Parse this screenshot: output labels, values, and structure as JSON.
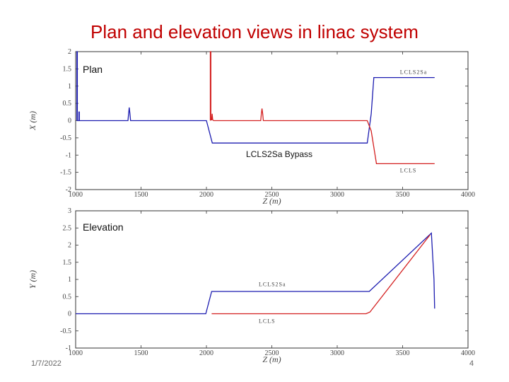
{
  "slide": {
    "title": "Plan and elevation views in linac system",
    "date": "1/7/2022",
    "page": "4"
  },
  "chart_data": [
    {
      "type": "line",
      "panel": "plan",
      "callout": "Plan",
      "annotation": "LCLS2Sa Bypass",
      "xlabel": "Z (m)",
      "ylabel": "X (m)",
      "xlim": [
        1000,
        4000
      ],
      "ylim": [
        -2,
        2
      ],
      "xticks": [
        1000,
        1500,
        2000,
        2500,
        3000,
        3500,
        4000
      ],
      "yticks": [
        -2,
        -1.5,
        -1,
        -0.5,
        0,
        0.5,
        1,
        1.5,
        2
      ],
      "yticklabels": [
        "-2",
        "-1.5",
        "-1",
        "-0.5",
        "0",
        "0.5",
        "1",
        "1.5",
        "2"
      ],
      "series_colors": {
        "lcls2sa": "#1c1cb0",
        "lcls": "#d42020"
      },
      "series": [
        {
          "name": "LCLS2Sa",
          "x": [
            1010,
            1010,
            1013,
            1013,
            1025,
            1025,
            1028,
            1028,
            1040,
            1400,
            1405,
            1410,
            1415,
            1420,
            2000,
            2045,
            3230,
            3260,
            3280,
            3745
          ],
          "y": [
            0,
            2,
            2,
            0,
            0,
            0.25,
            0.25,
            0,
            0,
            0,
            0.2,
            0.38,
            0.2,
            0,
            0,
            -0.65,
            -0.65,
            0.2,
            1.25,
            1.25
          ]
        },
        {
          "name": "LCLS",
          "x": [
            2030,
            2030,
            2034,
            2034,
            2040,
            2044,
            2048,
            2055,
            2415,
            2420,
            2425,
            2430,
            2435,
            3230,
            3260,
            3300,
            3745
          ],
          "y": [
            0,
            2,
            2,
            0.02,
            0.02,
            0.2,
            0.02,
            0,
            0,
            0.2,
            0.35,
            0.2,
            0,
            0,
            -0.3,
            -1.25,
            -1.25
          ]
        }
      ],
      "labels": [
        "LCLS2Sa",
        "LCLS"
      ]
    },
    {
      "type": "line",
      "panel": "elevation",
      "callout": "Elevation",
      "xlabel": "Z (m)",
      "ylabel": "Y (m)",
      "xlim": [
        1000,
        4000
      ],
      "ylim": [
        -1,
        3
      ],
      "xticks": [
        1000,
        1500,
        2000,
        2500,
        3000,
        3500,
        4000
      ],
      "yticks": [
        -1,
        -0.5,
        0,
        0.5,
        1,
        1.5,
        2,
        2.5,
        3
      ],
      "yticklabels": [
        "-1",
        "-0.5",
        "0",
        "0.5",
        "1",
        "1.5",
        "2",
        "2.5",
        "3"
      ],
      "series_colors": {
        "lcls2sa": "#1c1cb0",
        "lcls": "#d42020"
      },
      "series": [
        {
          "name": "LCLS2Sa",
          "x": [
            1000,
            1995,
            2040,
            3245,
            3720,
            3740,
            3745
          ],
          "y": [
            0,
            0,
            0.65,
            0.65,
            2.35,
            1.0,
            0.15
          ]
        },
        {
          "name": "LCLS",
          "x": [
            2040,
            3220,
            3250,
            3710
          ],
          "y": [
            0,
            0,
            0.05,
            2.3
          ]
        }
      ],
      "labels": [
        "LCLS2Sa",
        "LCLS"
      ]
    }
  ]
}
